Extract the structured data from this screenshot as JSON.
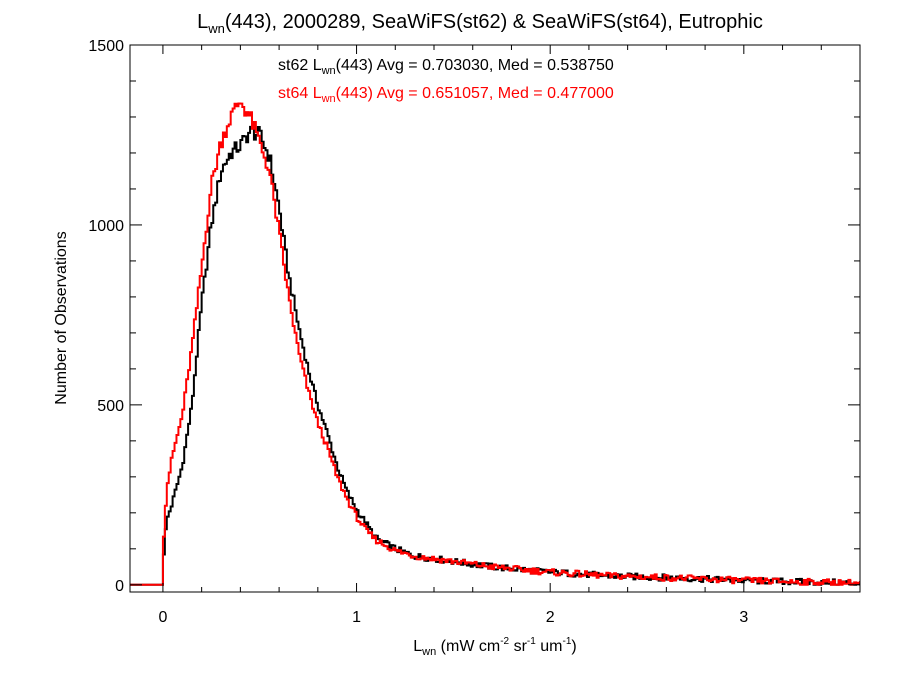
{
  "chart_data": {
    "type": "line",
    "step": true,
    "title": {
      "main": "L",
      "main_sub": "wn",
      "rest": "(443), 2000289, SeaWiFS(st62) & SeaWiFS(st64), Eutrophic"
    },
    "xlabel": {
      "main": "L",
      "main_sub": "wn",
      "p1": " (mW cm",
      "sup1": "-2",
      "p2": " sr",
      "sup2": "-1",
      "p3": " um",
      "sup3": "-1",
      "p4": ")"
    },
    "ylabel": "Number of Observations",
    "xlim": [
      -0.17,
      3.6
    ],
    "ylim": [
      -20,
      1500
    ],
    "x_ticks": [
      0,
      1,
      2,
      3
    ],
    "y_ticks": [
      0,
      500,
      1000,
      1500
    ],
    "grid": false,
    "annotations": [
      {
        "color": "#000000",
        "pre": "st62 L",
        "sub": "wn",
        "post": "(443) Avg = 0.703030, Med = 0.538750"
      },
      {
        "color": "#ff0000",
        "pre": "st64 L",
        "sub": "wn",
        "post": "(443) Avg = 0.651057, Med = 0.477000"
      }
    ],
    "series": [
      {
        "color": "#000000",
        "x": [
          -0.02,
          0.0,
          0.02,
          0.05,
          0.1,
          0.15,
          0.2,
          0.25,
          0.3,
          0.35,
          0.4,
          0.45,
          0.5,
          0.55,
          0.6,
          0.65,
          0.7,
          0.75,
          0.8,
          0.85,
          0.9,
          0.95,
          1.0,
          1.05,
          1.1,
          1.2,
          1.3,
          1.5,
          1.7,
          2.0,
          2.3,
          2.6,
          3.0,
          3.3,
          3.6
        ],
        "y": [
          0,
          60,
          180,
          230,
          330,
          500,
          780,
          1000,
          1150,
          1200,
          1220,
          1260,
          1250,
          1190,
          1050,
          860,
          720,
          600,
          500,
          420,
          330,
          260,
          210,
          170,
          130,
          100,
          80,
          65,
          50,
          35,
          25,
          20,
          12,
          8,
          5
        ]
      },
      {
        "color": "#ff0000",
        "x": [
          -0.02,
          0.0,
          0.02,
          0.05,
          0.1,
          0.15,
          0.2,
          0.25,
          0.3,
          0.35,
          0.4,
          0.45,
          0.5,
          0.55,
          0.6,
          0.65,
          0.7,
          0.75,
          0.8,
          0.85,
          0.9,
          0.95,
          1.0,
          1.05,
          1.1,
          1.2,
          1.3,
          1.5,
          1.7,
          2.0,
          2.3,
          2.6,
          3.0,
          3.3,
          3.6
        ],
        "y": [
          0,
          100,
          270,
          360,
          470,
          660,
          880,
          1110,
          1230,
          1300,
          1345,
          1300,
          1230,
          1150,
          980,
          800,
          650,
          540,
          450,
          380,
          300,
          240,
          190,
          150,
          125,
          95,
          80,
          65,
          50,
          35,
          25,
          20,
          12,
          8,
          5
        ]
      }
    ]
  }
}
